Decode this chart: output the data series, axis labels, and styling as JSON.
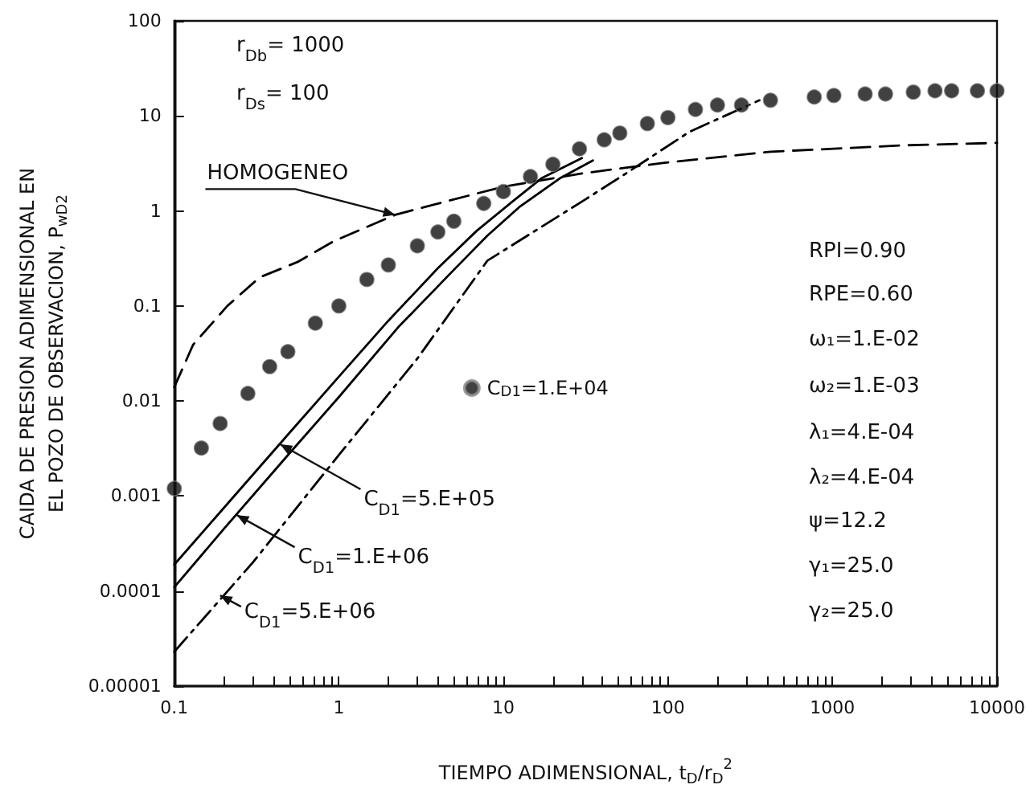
{
  "chart_data": {
    "type": "line",
    "xlabel": "TIEMPO ADIMENSIONAL, t$_{D}$/r$_{D}$$^{2}$",
    "ylabel": "CAIDA DE PRESION ADIMENSIONAL EN\nEL POZO DE OBSERVACION, P$_{wD2}$",
    "log": "xy",
    "grid": false,
    "legend": "center",
    "xlim": [
      0.1,
      10000
    ],
    "ylim": [
      1e-05,
      100
    ],
    "xticks": [
      {
        "value": 0.1,
        "label": "0.1"
      },
      {
        "value": 0.2,
        "label": null
      },
      {
        "value": 0.3,
        "label": null
      },
      {
        "value": 0.4,
        "label": null
      },
      {
        "value": 0.5,
        "label": null
      },
      {
        "value": 0.6,
        "label": null
      },
      {
        "value": 0.7,
        "label": null
      },
      {
        "value": 0.8,
        "label": null
      },
      {
        "value": 0.9,
        "label": null
      },
      1,
      {
        "value": 2,
        "label": null
      },
      {
        "value": 3,
        "label": null
      },
      {
        "value": 4,
        "label": null
      },
      {
        "value": 5,
        "label": null
      },
      {
        "value": 6,
        "label": null
      },
      {
        "value": 7,
        "label": null
      },
      {
        "value": 8,
        "label": null
      },
      {
        "value": 9,
        "label": null
      },
      10,
      {
        "value": 20,
        "label": null
      },
      {
        "value": 30,
        "label": null
      },
      {
        "value": 40,
        "label": null
      },
      {
        "value": 50,
        "label": null
      },
      {
        "value": 60,
        "label": null
      },
      {
        "value": 70,
        "label": null
      },
      {
        "value": 80,
        "label": null
      },
      {
        "value": 90,
        "label": null
      },
      100,
      {
        "value": 200,
        "label": null
      },
      {
        "value": 300,
        "label": null
      },
      {
        "value": 400,
        "label": null
      },
      {
        "value": 500,
        "label": null
      },
      {
        "value": 600,
        "label": null
      },
      {
        "value": 700,
        "label": null
      },
      {
        "value": 800,
        "label": null
      },
      {
        "value": 900,
        "label": null
      },
      1000,
      {
        "value": 2000,
        "label": null
      },
      {
        "value": 3000,
        "label": null
      },
      {
        "value": 4000,
        "label": null
      },
      {
        "value": 5000,
        "label": null
      },
      {
        "value": 6000,
        "label": null
      },
      {
        "value": 7000,
        "label": null
      },
      {
        "value": 8000,
        "label": null
      },
      {
        "value": 9000,
        "label": null
      },
      10000
    ],
    "yticks": [
      {
        "value": 1e-05,
        "label": "0.00001"
      },
      {
        "value": 0.0001,
        "label": "0.0001"
      },
      {
        "value": 0.001,
        "label": "0.001"
      },
      {
        "value": 0.01,
        "label": "0.01"
      },
      {
        "value": 0.1,
        "label": "0.1"
      },
      1,
      10,
      100
    ],
    "series": [
      {
        "name": "C$_{D1}$=1.E+04",
        "type": "scatter",
        "marker": "circle",
        "color": "#111111",
        "x": [
          0.1,
          0.146,
          0.19,
          0.28,
          0.38,
          0.49,
          0.72,
          1.0,
          1.48,
          2.0,
          3.0,
          4.0,
          5.0,
          7.6,
          10,
          14.6,
          20,
          29,
          41,
          51,
          75,
          100,
          147,
          200,
          280,
          420,
          775,
          1020,
          1580,
          2100,
          3100,
          4200,
          5300,
          7600,
          10000
        ],
        "values": [
          0.0012,
          0.0032,
          0.0058,
          0.012,
          0.023,
          0.033,
          0.066,
          0.1,
          0.19,
          0.27,
          0.43,
          0.6,
          0.78,
          1.2,
          1.6,
          2.3,
          3.1,
          4.5,
          5.6,
          6.6,
          8.3,
          9.6,
          11.7,
          13,
          13,
          14.6,
          15.8,
          16.4,
          17,
          17,
          17.8,
          18.4,
          18.4,
          18.4,
          18.4
        ]
      },
      {
        "line_style": "dashed",
        "marker": "none",
        "color": "#000000",
        "x": [
          0.1,
          0.13,
          0.21,
          0.33,
          0.56,
          0.93,
          2.2,
          4.8,
          10,
          31,
          93,
          420,
          2700,
          10000
        ],
        "values": [
          0.014,
          0.039,
          0.1,
          0.2,
          0.29,
          0.48,
          0.91,
          1.3,
          1.8,
          2.5,
          3.2,
          4.2,
          4.9,
          5.2
        ]
      },
      {
        "line_style": "solid",
        "marker": "none",
        "color": "#000000",
        "x": [
          0.1,
          0.2,
          0.5,
          1,
          2,
          4,
          6.9,
          11,
          17,
          30
        ],
        "values": [
          0.00019,
          0.00075,
          0.0046,
          0.018,
          0.07,
          0.25,
          0.62,
          1.2,
          2.2,
          3.6
        ]
      },
      {
        "line_style": "solid",
        "marker": "none",
        "color": "#000000",
        "x": [
          0.1,
          0.2,
          0.5,
          1,
          2.3,
          5,
          8,
          12.5,
          22,
          35
        ],
        "values": [
          0.00011,
          0.00045,
          0.0028,
          0.011,
          0.06,
          0.24,
          0.55,
          1.1,
          2.2,
          3.4
        ]
      },
      {
        "line_style": "dashdot",
        "marker": "none",
        "color": "#000000",
        "x": [
          0.1,
          0.3,
          1,
          3,
          8,
          31,
          56,
          135,
          360
        ],
        "values": [
          2.3e-05,
          0.0002,
          0.0027,
          0.028,
          0.3,
          1.3,
          2.5,
          6.8,
          14.6
        ]
      }
    ],
    "annotations": [
      "r$_{Db}$= 1000",
      "r$_{Ds}$= 100",
      "RPI=0.90",
      "RPE=0.60",
      "ω₁=1.E-02",
      "ω₂=1.E-03",
      "λ₁=4.E-04",
      "λ₂=4.E-04",
      "ψ=12.2",
      "γ₁=25.0",
      "γ₂=25.0",
      {
        "text": "HOMOGENEO",
        "x": 2.2,
        "y": 0.91
      },
      {
        "text": "C$_{D1}$=5.E+05",
        "x": 0.44,
        "y": 0.0035
      },
      {
        "text": "C$_{D1}$=1.E+06",
        "x": 0.24,
        "y": 0.00063
      },
      {
        "text": "C$_{D1}$=5.E+06",
        "x": 0.19,
        "y": 9e-05
      }
    ]
  }
}
